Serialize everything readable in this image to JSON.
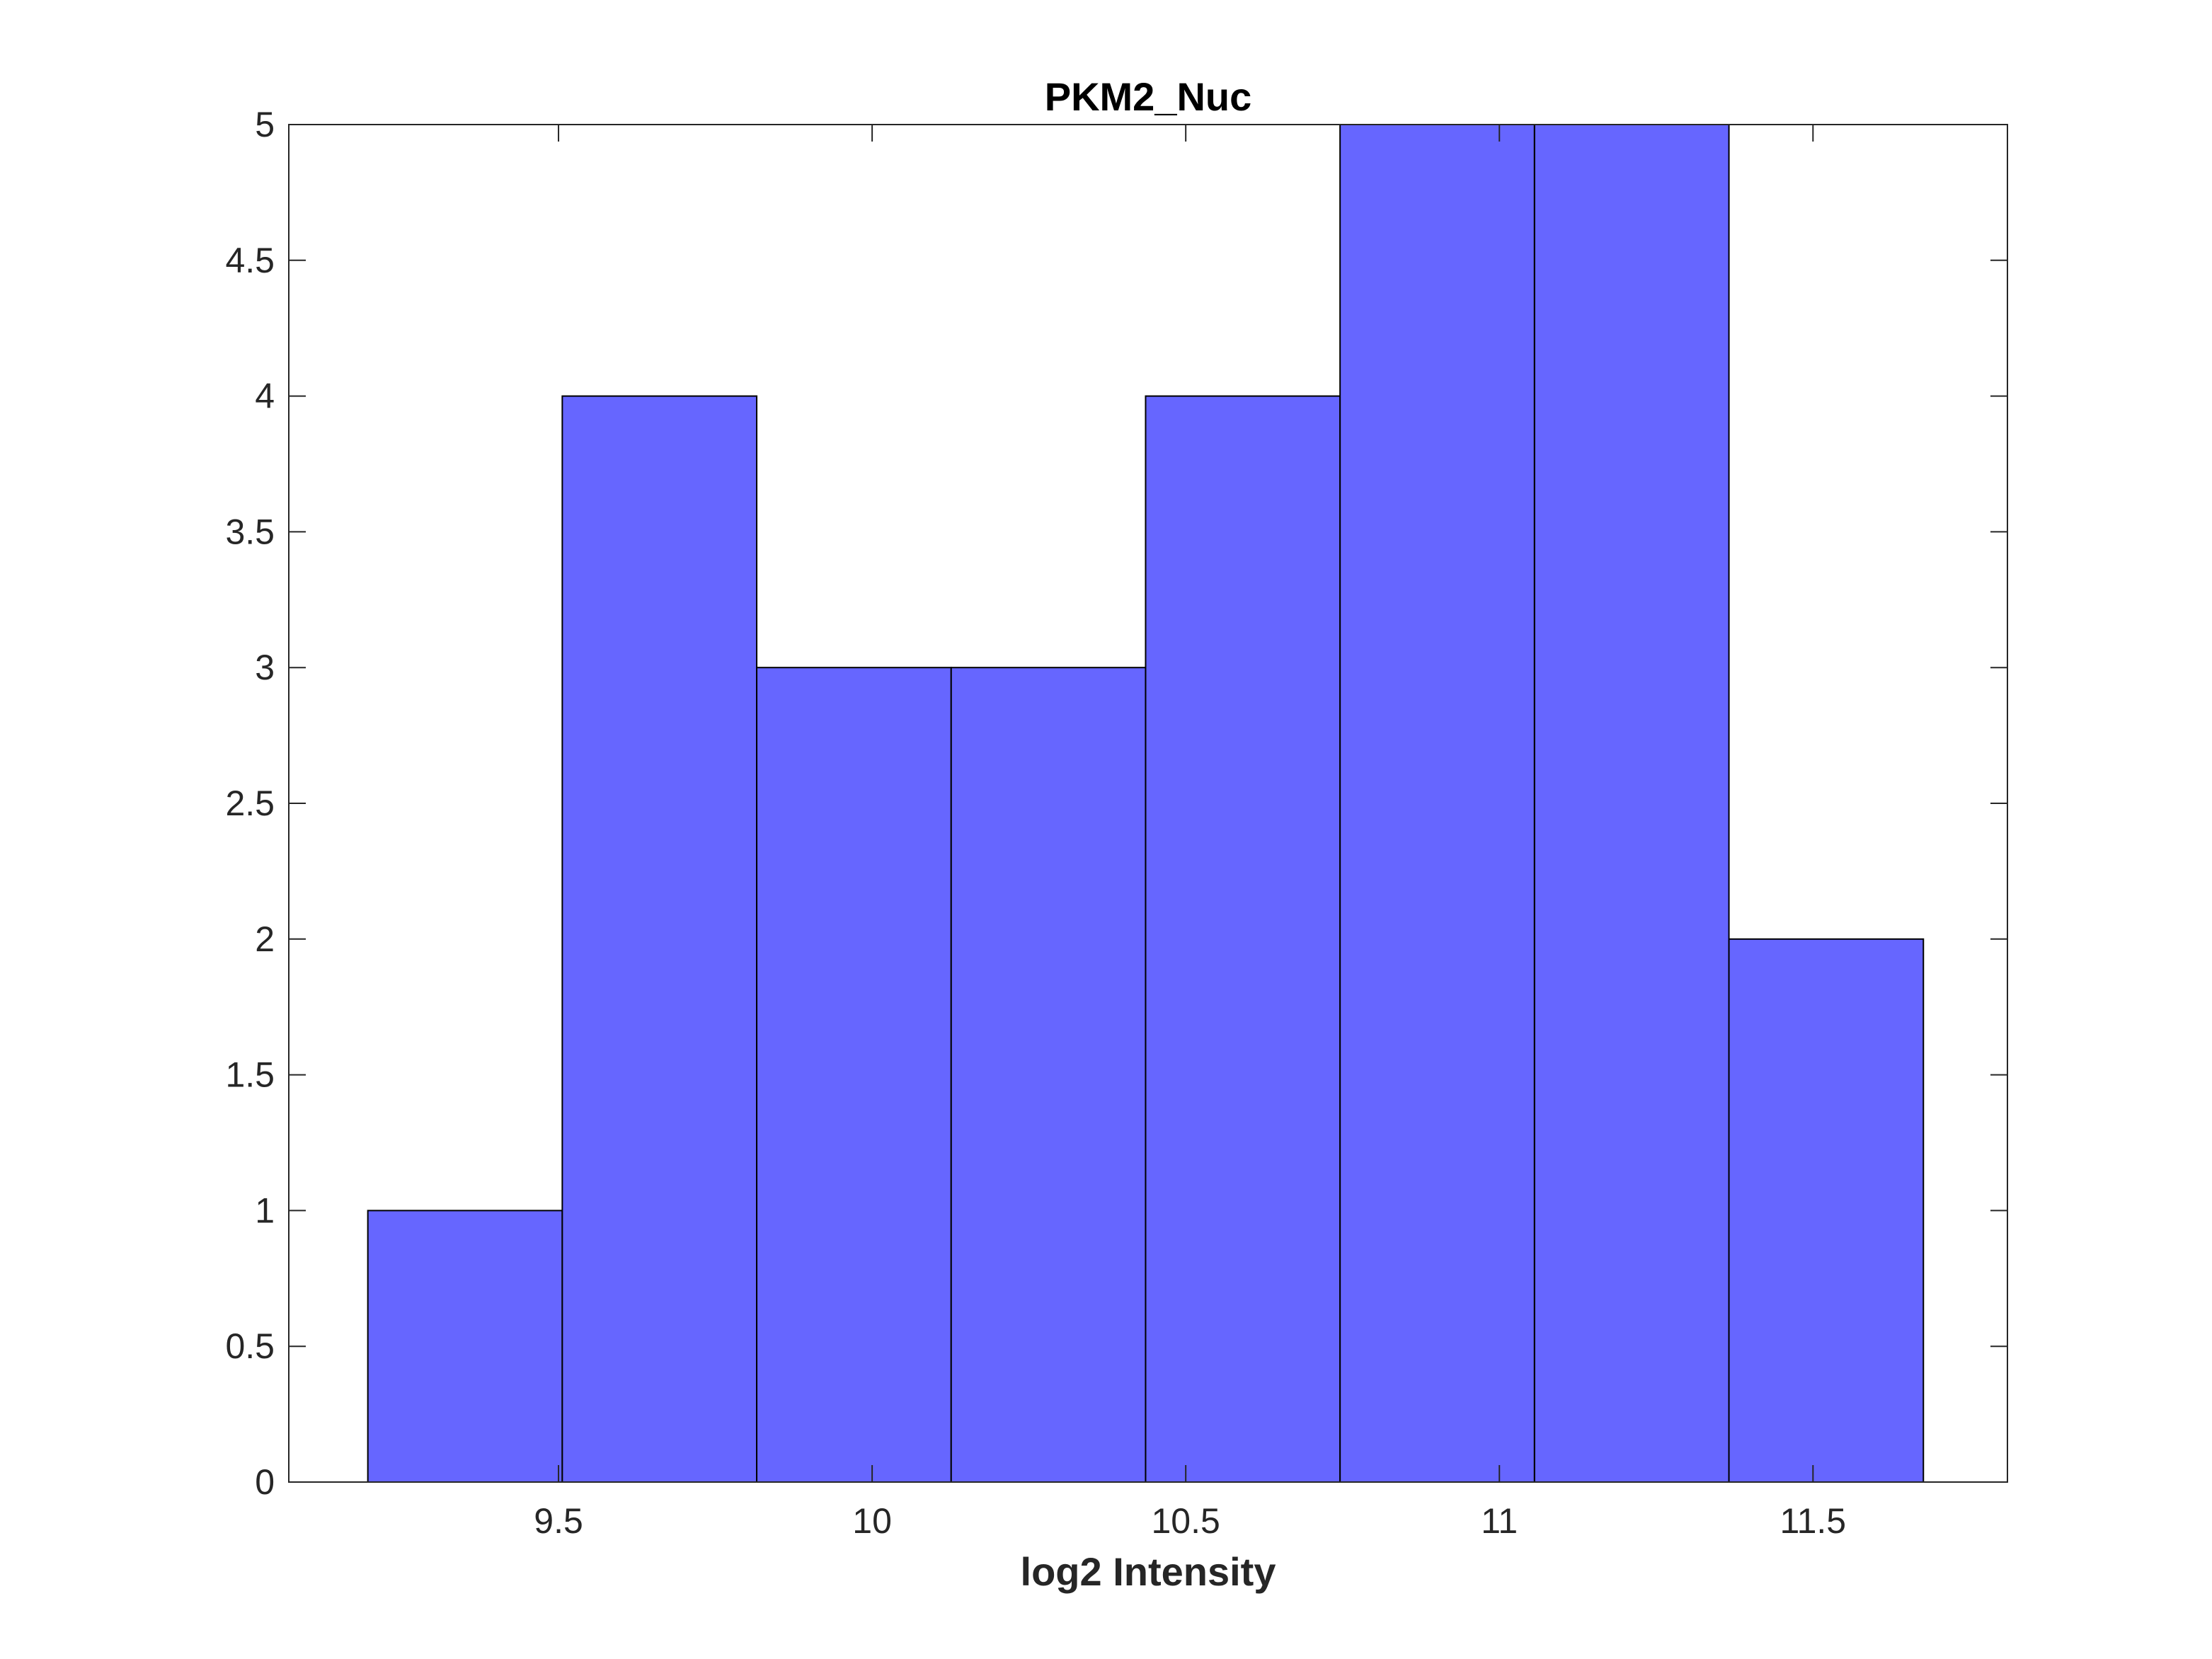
{
  "chart_data": {
    "type": "bar",
    "title": "PKM2_Nuc",
    "xlabel": "log2 Intensity",
    "ylabel": "",
    "bins": [
      {
        "start": 9.196,
        "end": 9.506,
        "count": 1
      },
      {
        "start": 9.506,
        "end": 9.816,
        "count": 4
      },
      {
        "start": 9.816,
        "end": 10.126,
        "count": 3
      },
      {
        "start": 10.126,
        "end": 10.436,
        "count": 3
      },
      {
        "start": 10.436,
        "end": 10.746,
        "count": 4
      },
      {
        "start": 10.746,
        "end": 11.056,
        "count": 5
      },
      {
        "start": 11.056,
        "end": 11.366,
        "count": 5
      },
      {
        "start": 11.366,
        "end": 11.676,
        "count": 2
      }
    ],
    "xlim": [
      9.07,
      11.81
    ],
    "ylim": [
      0,
      5
    ],
    "xticks": [
      "9.5",
      "10",
      "10.5",
      "11",
      "11.5"
    ],
    "xtick_values": [
      9.5,
      10,
      10.5,
      11,
      11.5
    ],
    "yticks": [
      "0",
      "0.5",
      "1",
      "1.5",
      "2",
      "2.5",
      "3",
      "3.5",
      "4",
      "4.5",
      "5"
    ],
    "ytick_values": [
      0,
      0.5,
      1,
      1.5,
      2,
      2.5,
      3,
      3.5,
      4,
      4.5,
      5
    ],
    "bar_color": "#6666ff",
    "edge_color": "#000000",
    "grid": false,
    "legend": "none"
  }
}
